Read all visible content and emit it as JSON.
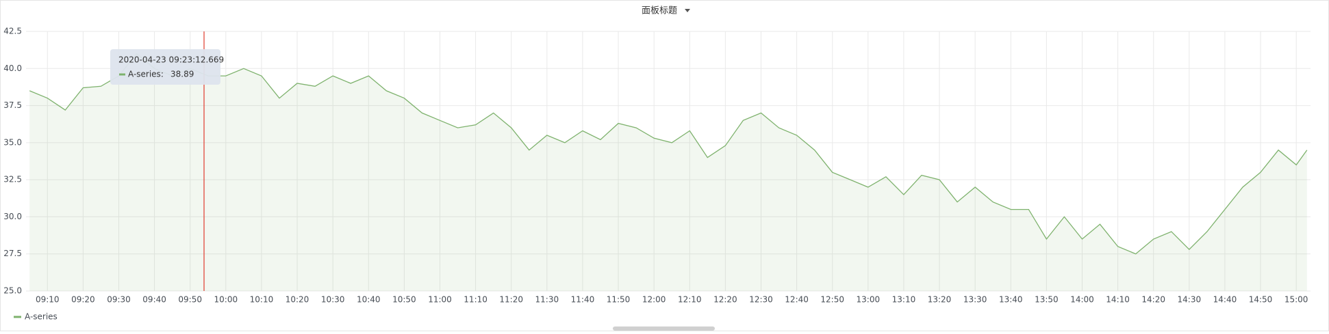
{
  "chart_data": {
    "type": "line",
    "title": "面板标题",
    "x": [
      "09:05",
      "09:10",
      "09:15",
      "09:20",
      "09:25",
      "09:30",
      "09:35",
      "09:40",
      "09:45",
      "09:50",
      "09:55",
      "10:00",
      "10:05",
      "10:10",
      "10:15",
      "10:20",
      "10:25",
      "10:30",
      "10:35",
      "10:40",
      "10:45",
      "10:50",
      "10:55",
      "11:00",
      "11:05",
      "11:10",
      "11:15",
      "11:20",
      "11:25",
      "11:30",
      "11:35",
      "11:40",
      "11:45",
      "11:50",
      "11:55",
      "12:00",
      "12:05",
      "12:10",
      "12:15",
      "12:20",
      "12:25",
      "12:30",
      "12:35",
      "12:40",
      "12:45",
      "12:50",
      "12:55",
      "13:00",
      "13:05",
      "13:10",
      "13:15",
      "13:20",
      "13:25",
      "13:30",
      "13:35",
      "13:40",
      "13:45",
      "13:50",
      "13:55",
      "14:00",
      "14:05",
      "14:10",
      "14:15",
      "14:20",
      "14:25",
      "14:30",
      "14:35",
      "14:40",
      "14:45",
      "14:50",
      "14:55",
      "15:00",
      "15:03"
    ],
    "series": [
      {
        "name": "A-series",
        "color": "#7eb26d",
        "values": [
          38.5,
          38.0,
          37.2,
          38.7,
          38.8,
          39.5,
          41.0,
          40.0,
          39.5,
          40.0,
          39.5,
          39.5,
          40.0,
          39.5,
          38.0,
          39.0,
          38.8,
          39.5,
          39.0,
          39.5,
          38.5,
          38.0,
          37.0,
          36.5,
          36.0,
          36.2,
          37.0,
          36.0,
          34.5,
          35.5,
          35.0,
          35.8,
          35.2,
          36.3,
          36.0,
          35.3,
          35.0,
          35.8,
          34.0,
          34.8,
          36.5,
          37.0,
          36.0,
          35.5,
          34.5,
          33.0,
          32.5,
          32.0,
          32.7,
          31.5,
          32.8,
          32.5,
          31.0,
          32.0,
          31.0,
          30.5,
          30.5,
          28.5,
          30.0,
          28.5,
          29.5,
          28.0,
          27.5,
          28.5,
          29.0,
          27.8,
          29.0,
          30.5,
          32.0,
          33.0,
          34.5,
          33.5,
          34.5
        ]
      }
    ],
    "xlim": [
      "09:04",
      "15:04"
    ],
    "xticks": [
      "09:10",
      "09:20",
      "09:30",
      "09:40",
      "09:50",
      "10:00",
      "10:10",
      "10:20",
      "10:30",
      "10:40",
      "10:50",
      "11:00",
      "11:10",
      "11:20",
      "11:30",
      "11:40",
      "11:50",
      "12:00",
      "12:10",
      "12:20",
      "12:30",
      "12:40",
      "12:50",
      "13:00",
      "13:10",
      "13:20",
      "13:30",
      "13:40",
      "13:50",
      "14:00",
      "14:10",
      "14:20",
      "14:30",
      "14:40",
      "14:50",
      "15:00"
    ],
    "ylim": [
      25,
      42.5
    ],
    "yticks": [
      {
        "value": 25,
        "label": "25.0"
      },
      {
        "value": 27.5,
        "label": "27.5"
      },
      {
        "value": 30,
        "label": "30.0"
      },
      {
        "value": 32.5,
        "label": "32.5"
      },
      {
        "value": 35,
        "label": "35.0"
      },
      {
        "value": 37.5,
        "label": "37.5"
      },
      {
        "value": 40,
        "label": "40.0"
      },
      {
        "value": 42.5,
        "label": "42.5"
      }
    ],
    "grid": true,
    "legend": "bottom-left",
    "tooltip": {
      "time": "2020-04-23 09:23:12.669",
      "series": "A-series:",
      "value": 38.89
    }
  }
}
